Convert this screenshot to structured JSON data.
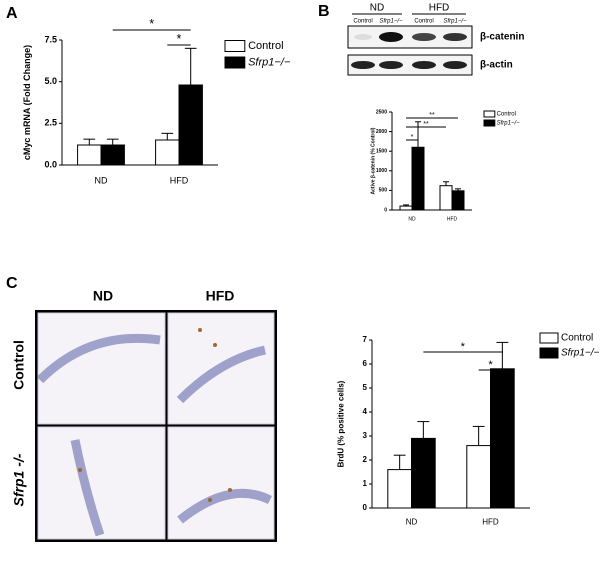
{
  "panels": {
    "letters": [
      "A",
      "B",
      "C"
    ],
    "blot": {
      "groups": [
        "ND",
        "HFD"
      ],
      "lanes": [
        "Control",
        "Sfrp1−/−",
        "Control",
        "Sfrp1−/−"
      ],
      "rows": [
        "β-catenin",
        "β-actin"
      ]
    },
    "histology": {
      "columns": [
        "ND",
        "HFD"
      ],
      "rows": [
        "Control",
        "Sfrp1 -/-"
      ]
    }
  },
  "chart_data": [
    {
      "type": "bar",
      "ylabel": "cMyc mRNA (Fold Change)",
      "categories": [
        "ND",
        "HFD"
      ],
      "series": [
        {
          "name": "Control",
          "color": "#ffffff",
          "values": [
            1.2,
            1.5
          ],
          "errors": [
            0.35,
            0.4
          ]
        },
        {
          "name": "Sfrp1−/−",
          "color": "#000000",
          "values": [
            1.2,
            4.8
          ],
          "errors": [
            0.35,
            2.2
          ]
        }
      ],
      "ylim": [
        0,
        7.5
      ],
      "yticks": [
        {
          "value": 0,
          "label": "0.0"
        },
        {
          "value": 2.5,
          "label": "2.5"
        },
        {
          "value": 5,
          "label": "5.0"
        },
        {
          "value": 7.5,
          "label": "7.5"
        }
      ],
      "annotations": [
        "*",
        "*"
      ]
    },
    {
      "type": "bar",
      "ylabel": "Active β-catenin (% Control)",
      "categories": [
        "ND",
        "HFD"
      ],
      "series": [
        {
          "name": "Control",
          "color": "#ffffff",
          "values": [
            100,
            620
          ],
          "errors": [
            30,
            100
          ]
        },
        {
          "name": "Sfrp1−/−",
          "color": "#000000",
          "values": [
            1600,
            490
          ],
          "errors": [
            650,
            50
          ]
        }
      ],
      "ylim": [
        0,
        2500
      ],
      "yticks": [
        0,
        500,
        1000,
        1500,
        2000,
        2500
      ],
      "annotations": [
        "*",
        "**",
        "**"
      ]
    },
    {
      "type": "bar",
      "ylabel": "BrdU (% positive cells)",
      "categories": [
        "ND",
        "HFD"
      ],
      "series": [
        {
          "name": "Control",
          "color": "#ffffff",
          "values": [
            1.6,
            2.6
          ],
          "errors": [
            0.6,
            0.8
          ]
        },
        {
          "name": "Sfrp1−/−",
          "color": "#000000",
          "values": [
            2.9,
            5.8
          ],
          "errors": [
            0.7,
            1.1
          ]
        }
      ],
      "ylim": [
        0,
        7
      ],
      "yticks": [
        0,
        1,
        2,
        3,
        4,
        5,
        6,
        7
      ],
      "annotations": [
        "*",
        "*"
      ]
    }
  ]
}
